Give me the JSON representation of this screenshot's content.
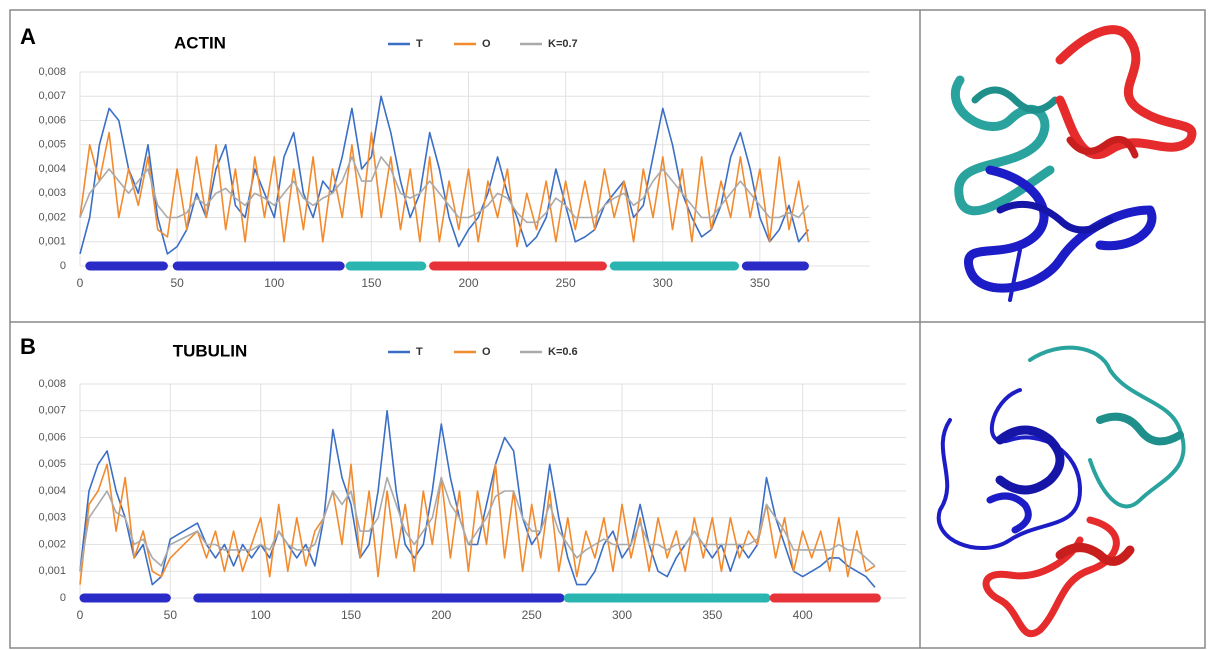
{
  "chart_data": [
    {
      "type": "line",
      "panel_label": "A",
      "title": "ACTIN",
      "x": [
        0,
        5,
        10,
        15,
        20,
        25,
        30,
        35,
        40,
        45,
        50,
        55,
        60,
        65,
        70,
        75,
        80,
        85,
        90,
        95,
        100,
        105,
        110,
        115,
        120,
        125,
        130,
        135,
        140,
        145,
        150,
        155,
        160,
        165,
        170,
        175,
        180,
        185,
        190,
        195,
        200,
        205,
        210,
        215,
        220,
        225,
        230,
        235,
        240,
        245,
        250,
        255,
        260,
        265,
        270,
        275,
        280,
        285,
        290,
        295,
        300,
        305,
        310,
        315,
        320,
        325,
        330,
        335,
        340,
        345,
        350,
        355,
        360,
        365,
        370,
        375
      ],
      "series": [
        {
          "name": "T",
          "color": "#3b6fc6",
          "values": [
            0.0005,
            0.002,
            0.005,
            0.0065,
            0.006,
            0.004,
            0.003,
            0.005,
            0.002,
            0.0005,
            0.0008,
            0.0015,
            0.003,
            0.002,
            0.004,
            0.005,
            0.0025,
            0.002,
            0.004,
            0.003,
            0.002,
            0.0045,
            0.0055,
            0.003,
            0.002,
            0.0035,
            0.003,
            0.0045,
            0.0065,
            0.004,
            0.0045,
            0.007,
            0.0055,
            0.0035,
            0.002,
            0.003,
            0.0055,
            0.004,
            0.002,
            0.0008,
            0.0015,
            0.002,
            0.003,
            0.0045,
            0.003,
            0.002,
            0.0008,
            0.0012,
            0.002,
            0.004,
            0.0025,
            0.001,
            0.0012,
            0.0015,
            0.0025,
            0.003,
            0.0035,
            0.002,
            0.0025,
            0.0045,
            0.0065,
            0.005,
            0.003,
            0.002,
            0.0012,
            0.0015,
            0.0025,
            0.0045,
            0.0055,
            0.004,
            0.002,
            0.001,
            0.0015,
            0.0025,
            0.001,
            0.0015
          ]
        },
        {
          "name": "O",
          "color": "#f28a2e",
          "values": [
            0.002,
            0.005,
            0.0035,
            0.0055,
            0.002,
            0.004,
            0.0025,
            0.0045,
            0.0015,
            0.0012,
            0.004,
            0.0015,
            0.0045,
            0.002,
            0.005,
            0.0015,
            0.004,
            0.001,
            0.0045,
            0.002,
            0.0045,
            0.001,
            0.004,
            0.0015,
            0.0045,
            0.001,
            0.004,
            0.002,
            0.005,
            0.002,
            0.0055,
            0.002,
            0.0045,
            0.0015,
            0.004,
            0.001,
            0.0045,
            0.001,
            0.0035,
            0.0015,
            0.004,
            0.001,
            0.0035,
            0.002,
            0.004,
            0.0008,
            0.003,
            0.0015,
            0.0035,
            0.001,
            0.0035,
            0.0015,
            0.0035,
            0.0015,
            0.004,
            0.002,
            0.0035,
            0.001,
            0.004,
            0.002,
            0.0045,
            0.0015,
            0.004,
            0.001,
            0.0045,
            0.0015,
            0.0035,
            0.002,
            0.0045,
            0.002,
            0.004,
            0.001,
            0.0045,
            0.0015,
            0.0035,
            0.001
          ]
        },
        {
          "name": "K=0.7",
          "color": "#aaaaaa",
          "values": [
            0.002,
            0.003,
            0.0035,
            0.004,
            0.0035,
            0.003,
            0.0035,
            0.004,
            0.0025,
            0.002,
            0.002,
            0.0022,
            0.0028,
            0.0025,
            0.003,
            0.0032,
            0.0028,
            0.0025,
            0.003,
            0.0028,
            0.0025,
            0.003,
            0.0035,
            0.0028,
            0.0025,
            0.0028,
            0.003,
            0.0035,
            0.0045,
            0.0035,
            0.0035,
            0.0045,
            0.004,
            0.003,
            0.0028,
            0.003,
            0.0035,
            0.003,
            0.0025,
            0.002,
            0.002,
            0.0022,
            0.0025,
            0.003,
            0.0028,
            0.0022,
            0.0018,
            0.0018,
            0.0022,
            0.0028,
            0.0025,
            0.002,
            0.002,
            0.002,
            0.0025,
            0.0028,
            0.003,
            0.0025,
            0.0028,
            0.0035,
            0.004,
            0.0035,
            0.003,
            0.0025,
            0.002,
            0.002,
            0.0025,
            0.003,
            0.0035,
            0.003,
            0.0025,
            0.002,
            0.002,
            0.0022,
            0.002,
            0.0025
          ]
        }
      ],
      "domains": [
        {
          "start": 3,
          "end": 45,
          "color": "#2b2bc8"
        },
        {
          "start": 48,
          "end": 136,
          "color": "#2b2bc8"
        },
        {
          "start": 137,
          "end": 178,
          "color": "#2ab5b0"
        },
        {
          "start": 180,
          "end": 271,
          "color": "#e8323a"
        },
        {
          "start": 273,
          "end": 339,
          "color": "#2ab5b0"
        },
        {
          "start": 341,
          "end": 375,
          "color": "#2b2bc8"
        }
      ],
      "xlim": [
        0,
        400
      ],
      "xticks": [
        0,
        50,
        100,
        150,
        200,
        250,
        300,
        350
      ],
      "ylim": [
        0,
        0.008
      ],
      "yticks": [
        0,
        {
          "value": 0.001,
          "label": "0,001"
        },
        {
          "value": 0.002,
          "label": "0,002"
        },
        {
          "value": 0.003,
          "label": "0,003"
        },
        {
          "value": 0.004,
          "label": "0,004"
        },
        {
          "value": 0.005,
          "label": "0,005"
        },
        {
          "value": 0.006,
          "label": "0,006"
        },
        {
          "value": 0.007,
          "label": "0,007"
        },
        {
          "value": 0.008,
          "label": "0,008"
        }
      ],
      "grid": true,
      "legend": "top"
    },
    {
      "type": "line",
      "panel_label": "B",
      "title": "TUBULIN",
      "x": [
        0,
        5,
        10,
        15,
        20,
        25,
        30,
        35,
        40,
        45,
        50,
        65,
        70,
        75,
        80,
        85,
        90,
        95,
        100,
        105,
        110,
        115,
        120,
        125,
        130,
        135,
        140,
        145,
        150,
        155,
        160,
        165,
        170,
        175,
        180,
        185,
        190,
        195,
        200,
        205,
        210,
        215,
        220,
        225,
        230,
        235,
        240,
        245,
        250,
        255,
        260,
        265,
        270,
        275,
        280,
        285,
        290,
        295,
        300,
        305,
        310,
        315,
        320,
        325,
        330,
        335,
        340,
        345,
        350,
        355,
        360,
        365,
        370,
        375,
        380,
        385,
        390,
        395,
        400,
        405,
        410,
        415,
        420,
        425,
        430,
        435,
        440
      ],
      "series": [
        {
          "name": "T",
          "color": "#3b6fc6",
          "values": [
            0.001,
            0.004,
            0.005,
            0.0055,
            0.004,
            0.003,
            0.0015,
            0.002,
            0.0005,
            0.0008,
            0.0022,
            0.0028,
            0.002,
            0.0015,
            0.002,
            0.0012,
            0.002,
            0.0015,
            0.002,
            0.0015,
            0.0025,
            0.002,
            0.0015,
            0.002,
            0.0012,
            0.003,
            0.0063,
            0.0045,
            0.0035,
            0.0015,
            0.002,
            0.004,
            0.007,
            0.004,
            0.002,
            0.0015,
            0.002,
            0.004,
            0.0065,
            0.0045,
            0.003,
            0.002,
            0.002,
            0.0035,
            0.005,
            0.006,
            0.0055,
            0.003,
            0.002,
            0.0025,
            0.005,
            0.003,
            0.0015,
            0.0005,
            0.0005,
            0.001,
            0.002,
            0.0025,
            0.0015,
            0.002,
            0.0035,
            0.002,
            0.001,
            0.0008,
            0.0015,
            0.002,
            0.0025,
            0.002,
            0.0015,
            0.002,
            0.001,
            0.002,
            0.0015,
            0.002,
            0.0045,
            0.003,
            0.002,
            0.001,
            0.0008,
            0.001,
            0.0012,
            0.0015,
            0.0015,
            0.0012,
            0.001,
            0.0008,
            0.0004
          ]
        },
        {
          "name": "O",
          "color": "#f28a2e",
          "values": [
            0.0005,
            0.0035,
            0.004,
            0.005,
            0.0025,
            0.0045,
            0.0015,
            0.0025,
            0.001,
            0.0008,
            0.0015,
            0.0025,
            0.0015,
            0.0025,
            0.001,
            0.0025,
            0.001,
            0.002,
            0.003,
            0.0008,
            0.0035,
            0.001,
            0.003,
            0.0012,
            0.0025,
            0.003,
            0.004,
            0.002,
            0.005,
            0.0015,
            0.004,
            0.0008,
            0.004,
            0.0015,
            0.0035,
            0.001,
            0.004,
            0.002,
            0.0045,
            0.0015,
            0.004,
            0.001,
            0.004,
            0.002,
            0.005,
            0.0015,
            0.004,
            0.001,
            0.0035,
            0.0015,
            0.004,
            0.001,
            0.003,
            0.0008,
            0.0025,
            0.0015,
            0.003,
            0.001,
            0.0035,
            0.0015,
            0.003,
            0.001,
            0.003,
            0.0015,
            0.0025,
            0.001,
            0.003,
            0.0015,
            0.003,
            0.001,
            0.003,
            0.0015,
            0.0025,
            0.002,
            0.0035,
            0.0015,
            0.003,
            0.001,
            0.0025,
            0.0015,
            0.0025,
            0.001,
            0.003,
            0.0008,
            0.0025,
            0.001,
            0.0012
          ]
        },
        {
          "name": "K=0.6",
          "color": "#aaaaaa",
          "values": [
            0.001,
            0.003,
            0.0035,
            0.004,
            0.0032,
            0.003,
            0.002,
            0.0022,
            0.0015,
            0.0012,
            0.002,
            0.0025,
            0.002,
            0.002,
            0.0018,
            0.0018,
            0.0018,
            0.0018,
            0.002,
            0.0018,
            0.0025,
            0.002,
            0.0018,
            0.0018,
            0.002,
            0.003,
            0.004,
            0.0035,
            0.004,
            0.0025,
            0.0025,
            0.003,
            0.0045,
            0.0035,
            0.0025,
            0.002,
            0.0025,
            0.003,
            0.0045,
            0.0035,
            0.003,
            0.002,
            0.0025,
            0.003,
            0.0038,
            0.004,
            0.004,
            0.003,
            0.0025,
            0.0025,
            0.0035,
            0.0025,
            0.002,
            0.0015,
            0.0018,
            0.002,
            0.0022,
            0.002,
            0.002,
            0.002,
            0.0028,
            0.002,
            0.002,
            0.0018,
            0.002,
            0.002,
            0.0025,
            0.002,
            0.002,
            0.002,
            0.002,
            0.002,
            0.002,
            0.0022,
            0.0035,
            0.003,
            0.0025,
            0.0018,
            0.0018,
            0.0018,
            0.0018,
            0.0018,
            0.002,
            0.0018,
            0.0018,
            0.0015,
            0.0012
          ]
        }
      ],
      "domains": [
        {
          "start": 0,
          "end": 50,
          "color": "#2b2bc8"
        },
        {
          "start": 63,
          "end": 268,
          "color": "#2b2bc8"
        },
        {
          "start": 268,
          "end": 382,
          "color": "#2ab5b0"
        },
        {
          "start": 382,
          "end": 443,
          "color": "#e8323a"
        }
      ],
      "xlim": [
        0,
        450
      ],
      "xticks": [
        0,
        50,
        100,
        150,
        200,
        250,
        300,
        350,
        400
      ],
      "ylim": [
        0,
        0.008
      ],
      "yticks": [
        0,
        {
          "value": 0.001,
          "label": "0,001"
        },
        {
          "value": 0.002,
          "label": "0,002"
        },
        {
          "value": 0.003,
          "label": "0,003"
        },
        {
          "value": 0.004,
          "label": "0,004"
        },
        {
          "value": 0.005,
          "label": "0,005"
        },
        {
          "value": 0.006,
          "label": "0,006"
        },
        {
          "value": 0.007,
          "label": "0,007"
        },
        {
          "value": 0.008,
          "label": "0,008"
        }
      ],
      "grid": true,
      "legend": "top"
    }
  ]
}
